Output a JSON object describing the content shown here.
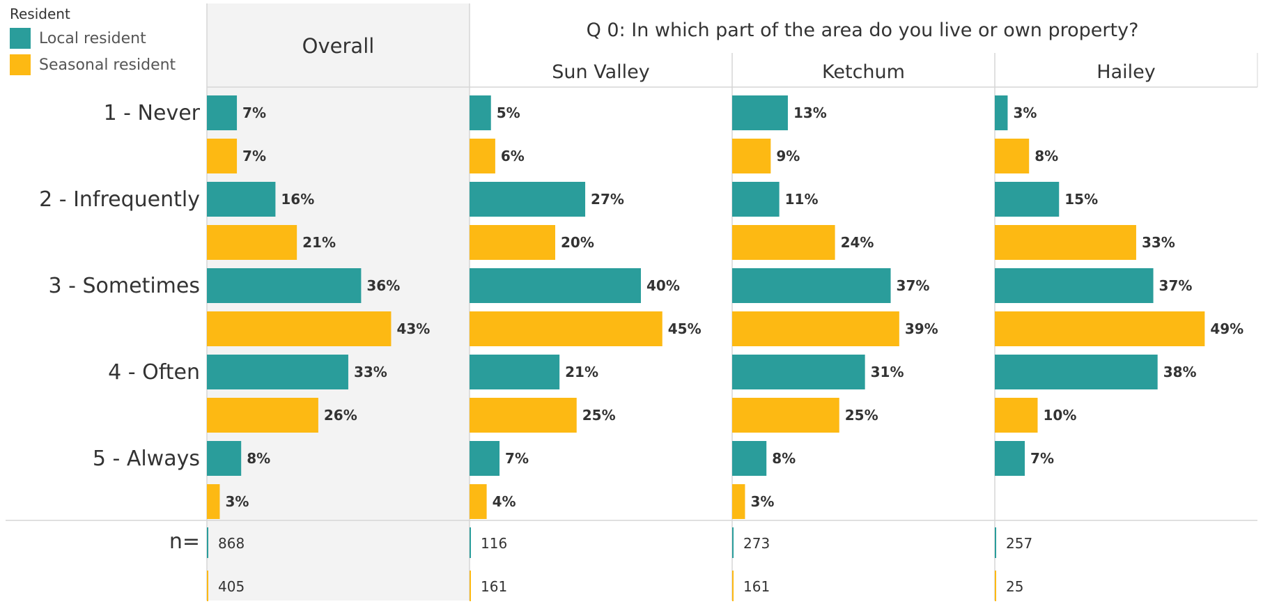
{
  "legend": {
    "title": "Resident",
    "items": [
      {
        "label": "Local resident",
        "color": "#2a9d9b"
      },
      {
        "label": "Seasonal resident",
        "color": "#fdb913"
      }
    ]
  },
  "chart_data": {
    "type": "bar",
    "orientation": "horizontal",
    "title": "Q 0: In which part of the area do you live or own property?",
    "overall_label": "Overall",
    "categories": [
      "1 - Never",
      "2 - Infrequently",
      "3 - Sometimes",
      "4 - Often",
      "5 - Always"
    ],
    "series_names": [
      "Local resident",
      "Seasonal resident"
    ],
    "n_label": "n=",
    "xlim": [
      0,
      55
    ],
    "panels": [
      {
        "name": "Overall",
        "local": [
          7,
          16,
          36,
          33,
          8
        ],
        "local_labels": [
          "7%",
          "16%",
          "36%",
          "33%",
          "8%"
        ],
        "seasonal": [
          7,
          21,
          43,
          26,
          3
        ],
        "seasonal_labels": [
          "7%",
          "21%",
          "43%",
          "26%",
          "3%"
        ],
        "n": [
          "868",
          "405"
        ]
      },
      {
        "name": "Sun Valley",
        "local": [
          5,
          27,
          40,
          21,
          7
        ],
        "local_labels": [
          "5%",
          "27%",
          "40%",
          "21%",
          "7%"
        ],
        "seasonal": [
          6,
          20,
          45,
          25,
          4
        ],
        "seasonal_labels": [
          "6%",
          "20%",
          "45%",
          "25%",
          "4%"
        ],
        "n": [
          "116",
          "161"
        ]
      },
      {
        "name": "Ketchum",
        "local": [
          13,
          11,
          37,
          31,
          8
        ],
        "local_labels": [
          "13%",
          "11%",
          "37%",
          "31%",
          "8%"
        ],
        "seasonal": [
          9,
          24,
          39,
          25,
          3
        ],
        "seasonal_labels": [
          "9%",
          "24%",
          "39%",
          "25%",
          "3%"
        ],
        "n": [
          "273",
          "161"
        ]
      },
      {
        "name": "Hailey",
        "local": [
          3,
          15,
          37,
          38,
          7
        ],
        "local_labels": [
          "3%",
          "15%",
          "37%",
          "38%",
          "7%"
        ],
        "seasonal": [
          8,
          33,
          49,
          10,
          null
        ],
        "seasonal_labels": [
          "8%",
          "33%",
          "49%",
          "10%",
          ""
        ],
        "n": [
          "257",
          "25"
        ]
      }
    ],
    "grid": false,
    "legend_position": "top-left"
  }
}
